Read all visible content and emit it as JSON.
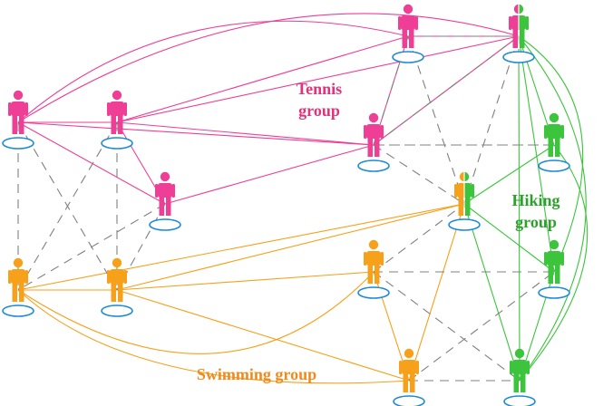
{
  "colors": {
    "tennis": "#ee3e96",
    "swimming": "#f7a01a",
    "hiking": "#3cc43c",
    "dashed": "#808080",
    "ellipse": "#1c8ad6"
  },
  "labels": {
    "tennis_line1": "Tennis",
    "tennis_line2": "group",
    "hiking_line1": "Hiking",
    "hiking_line2": "group",
    "swimming": "Swimming group"
  },
  "people": [
    {
      "id": "p1",
      "group": "tennis"
    },
    {
      "id": "p2",
      "group": "tennis"
    },
    {
      "id": "p3",
      "group": "tennis"
    },
    {
      "id": "p4",
      "group": "tennis"
    },
    {
      "id": "p5",
      "group": "tennis"
    },
    {
      "id": "p6",
      "group": "tennis-hiking"
    },
    {
      "id": "p7",
      "group": "hiking"
    },
    {
      "id": "p8",
      "group": "hiking-swimming"
    },
    {
      "id": "p9",
      "group": "hiking"
    },
    {
      "id": "p10",
      "group": "hiking"
    },
    {
      "id": "p11",
      "group": "swimming"
    },
    {
      "id": "p12",
      "group": "swimming"
    },
    {
      "id": "p13",
      "group": "swimming"
    },
    {
      "id": "p14",
      "group": "swimming"
    }
  ],
  "edges": [
    {
      "from": "p1",
      "to": "p2",
      "type": "tennis"
    },
    {
      "from": "p1",
      "to": "p3",
      "type": "tennis"
    },
    {
      "from": "p2",
      "to": "p3",
      "type": "tennis"
    },
    {
      "from": "p1",
      "to": "p4",
      "type": "tennis"
    },
    {
      "from": "p2",
      "to": "p4",
      "type": "tennis"
    },
    {
      "from": "p2",
      "to": "p5",
      "type": "tennis"
    },
    {
      "from": "p2",
      "to": "p6",
      "type": "tennis"
    },
    {
      "from": "p3",
      "to": "p4",
      "type": "tennis"
    },
    {
      "from": "p4",
      "to": "p5",
      "type": "tennis"
    },
    {
      "from": "p4",
      "to": "p6",
      "type": "tennis"
    },
    {
      "from": "p5",
      "to": "p6",
      "type": "tennis"
    },
    {
      "from": "p1",
      "to": "p5",
      "type": "tennis-arc"
    },
    {
      "from": "p1",
      "to": "p6",
      "type": "tennis-arc"
    },
    {
      "from": "p6",
      "to": "p7",
      "type": "hiking"
    },
    {
      "from": "p6",
      "to": "p9",
      "type": "hiking"
    },
    {
      "from": "p6",
      "to": "p10",
      "type": "hiking"
    },
    {
      "from": "p7",
      "to": "p8",
      "type": "hiking"
    },
    {
      "from": "p8",
      "to": "p9",
      "type": "hiking"
    },
    {
      "from": "p8",
      "to": "p10",
      "type": "hiking"
    },
    {
      "from": "p9",
      "to": "p10",
      "type": "hiking"
    },
    {
      "from": "p6",
      "to": "p9",
      "type": "hiking-arc"
    },
    {
      "from": "p7",
      "to": "p10",
      "type": "hiking-arc"
    },
    {
      "from": "p6",
      "to": "p10",
      "type": "hiking-arc"
    },
    {
      "from": "p11",
      "to": "p12",
      "type": "swimming"
    },
    {
      "from": "p12",
      "to": "p13",
      "type": "swimming"
    },
    {
      "from": "p12",
      "to": "p14",
      "type": "swimming"
    },
    {
      "from": "p12",
      "to": "p8",
      "type": "swimming"
    },
    {
      "from": "p13",
      "to": "p14",
      "type": "swimming"
    },
    {
      "from": "p14",
      "to": "p8",
      "type": "swimming"
    },
    {
      "from": "p11",
      "to": "p8",
      "type": "swimming"
    },
    {
      "from": "p11",
      "to": "p13",
      "type": "swimming-arc"
    },
    {
      "from": "p11",
      "to": "p14",
      "type": "swimming-arc"
    },
    {
      "from": "p1",
      "to": "p11",
      "type": "dashed"
    },
    {
      "from": "p1",
      "to": "p12",
      "type": "dashed"
    },
    {
      "from": "p2",
      "to": "p11",
      "type": "dashed"
    },
    {
      "from": "p2",
      "to": "p12",
      "type": "dashed"
    },
    {
      "from": "p3",
      "to": "p11",
      "type": "dashed"
    },
    {
      "from": "p3",
      "to": "p12",
      "type": "dashed"
    },
    {
      "from": "p4",
      "to": "p7",
      "type": "dashed"
    },
    {
      "from": "p4",
      "to": "p8",
      "type": "dashed"
    },
    {
      "from": "p5",
      "to": "p6",
      "type": "dashed"
    },
    {
      "from": "p5",
      "to": "p4",
      "type": "dashed"
    },
    {
      "from": "p5",
      "to": "p8",
      "type": "dashed"
    },
    {
      "from": "p6",
      "to": "p4",
      "type": "dashed"
    },
    {
      "from": "p6",
      "to": "p8",
      "type": "dashed"
    },
    {
      "from": "p7",
      "to": "p4",
      "type": "dashed"
    },
    {
      "from": "p13",
      "to": "p9",
      "type": "dashed"
    },
    {
      "from": "p13",
      "to": "p10",
      "type": "dashed"
    },
    {
      "from": "p13",
      "to": "p8",
      "type": "dashed"
    },
    {
      "from": "p14",
      "to": "p9",
      "type": "dashed"
    },
    {
      "from": "p14",
      "to": "p10",
      "type": "dashed"
    }
  ]
}
